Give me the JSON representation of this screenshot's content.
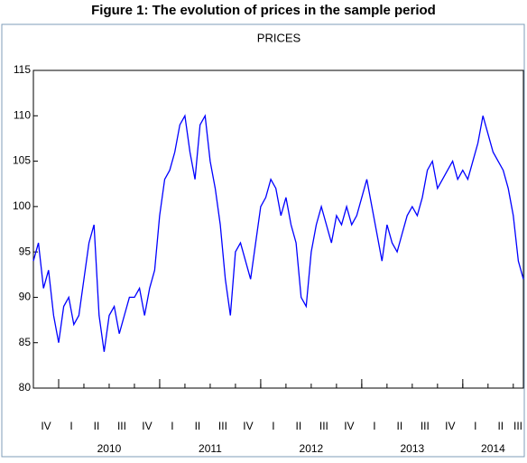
{
  "chart_data": {
    "type": "line",
    "title": "Figure 1: The evolution of prices in the sample period",
    "subtitle": "PRICES",
    "quarters": [
      "IV",
      "I",
      "II",
      "III",
      "IV",
      "I",
      "II",
      "III",
      "IV",
      "I",
      "II",
      "III",
      "IV",
      "I",
      "II",
      "III",
      "IV",
      "I",
      "II",
      "III"
    ],
    "years": [
      "2010",
      "2011",
      "2012",
      "2013",
      "2014"
    ],
    "series": [
      {
        "name": "PRICES",
        "color": "#0000ff",
        "values": [
          94,
          96,
          91,
          93,
          88,
          85,
          89,
          90,
          87,
          88,
          92,
          96,
          98,
          88,
          84,
          88,
          89,
          86,
          88,
          90,
          90,
          91,
          88,
          91,
          93,
          99,
          103,
          104,
          106,
          109,
          110,
          106,
          103,
          109,
          110,
          105,
          102,
          98,
          92,
          88,
          95,
          96,
          94,
          92,
          96,
          100,
          101,
          103,
          102,
          99,
          101,
          98,
          96,
          90,
          89,
          95,
          98,
          100,
          98,
          96,
          99,
          98,
          100,
          98,
          99,
          101,
          103,
          100,
          97,
          94,
          98,
          96,
          95,
          97,
          99,
          100,
          99,
          101,
          104,
          105,
          102,
          103,
          104,
          105,
          103,
          104,
          103,
          105,
          107,
          110,
          108,
          106,
          105,
          104,
          102,
          99,
          94,
          92
        ]
      }
    ],
    "ylim": [
      80,
      115
    ],
    "yticks": [
      80,
      85,
      90,
      95,
      100,
      105,
      110,
      115
    ]
  }
}
